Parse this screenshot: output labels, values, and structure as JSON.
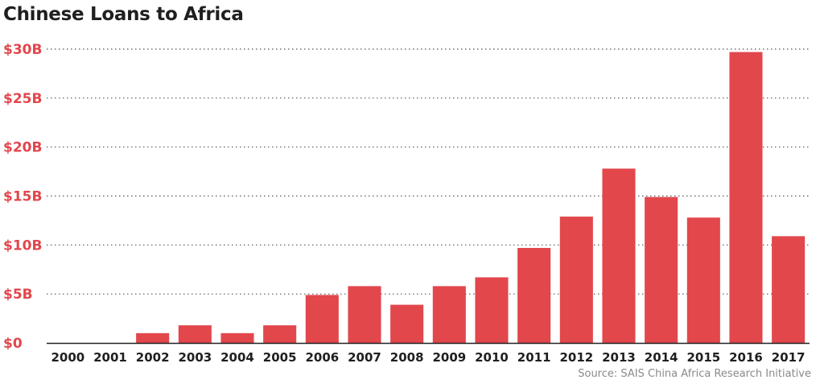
{
  "chart_data": {
    "type": "bar",
    "title": "Chinese Loans to Africa",
    "source": "Source: SAIS China Africa Research Initiative",
    "categories": [
      "2000",
      "2001",
      "2002",
      "2003",
      "2004",
      "2005",
      "2006",
      "2007",
      "2008",
      "2009",
      "2010",
      "2011",
      "2012",
      "2013",
      "2014",
      "2015",
      "2016",
      "2017"
    ],
    "values": [
      0,
      0,
      1.0,
      1.8,
      1.0,
      1.8,
      4.9,
      5.8,
      3.9,
      5.8,
      6.7,
      9.7,
      12.9,
      17.8,
      14.9,
      12.8,
      29.7,
      10.9
    ],
    "unit": "billion USD",
    "ylim": [
      0,
      30
    ],
    "yticks": [
      0,
      5,
      10,
      15,
      20,
      25,
      30
    ],
    "ytick_labels": [
      "$0",
      "$5B",
      "$10B",
      "$15B",
      "$20B",
      "$25B",
      "$30B"
    ],
    "grid": true,
    "colors": {
      "bar": "#e2474c",
      "ytick": "#e0474c"
    }
  }
}
